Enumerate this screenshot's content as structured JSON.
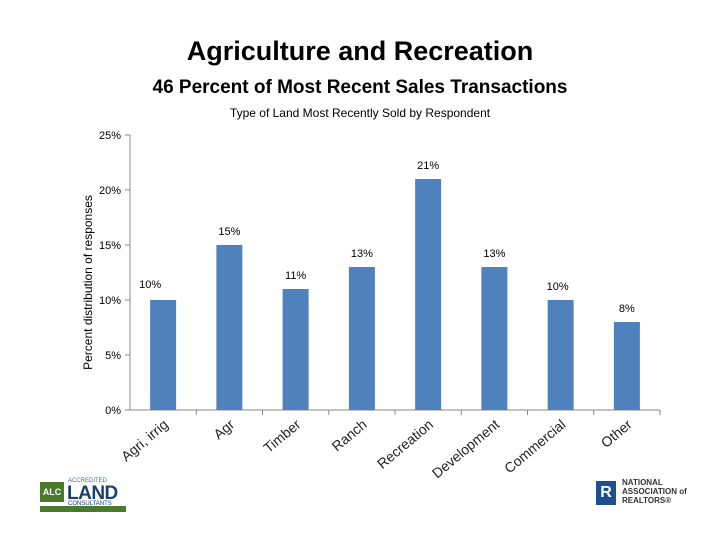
{
  "header": {
    "title": "Agriculture and Recreation",
    "subtitle": "46 Percent of Most Recent Sales Transactions"
  },
  "chart_data": {
    "type": "bar",
    "title": "Type of Land Most Recently Sold by Respondent",
    "xlabel": "",
    "ylabel": "Percent distribution of responses",
    "categories": [
      "Agri, irrig",
      "Agr",
      "Timber",
      "Ranch",
      "Recreation",
      "Development",
      "Commercial",
      "Other"
    ],
    "values": [
      10,
      15,
      11,
      13,
      21,
      13,
      10,
      8
    ],
    "data_labels": [
      "10%",
      "15%",
      "11%",
      "13%",
      "21%",
      "13%",
      "10%",
      "8%"
    ],
    "ylim": [
      0,
      25
    ],
    "yticks": [
      "0%",
      "5%",
      "10%",
      "15%",
      "20%",
      "25%"
    ],
    "bar_color": "#4f81bd",
    "grid": false,
    "legend": "none"
  },
  "logos": {
    "alc": {
      "badge": "ALC",
      "line1": "ACCREDITED",
      "line2": "LAND",
      "line3": "CONSULTANTS",
      "color": "#4a7b2c"
    },
    "nar": {
      "mark": "R",
      "text": "NATIONAL ASSOCIATION of REALTORS®",
      "color": "#1f4e8c"
    }
  }
}
